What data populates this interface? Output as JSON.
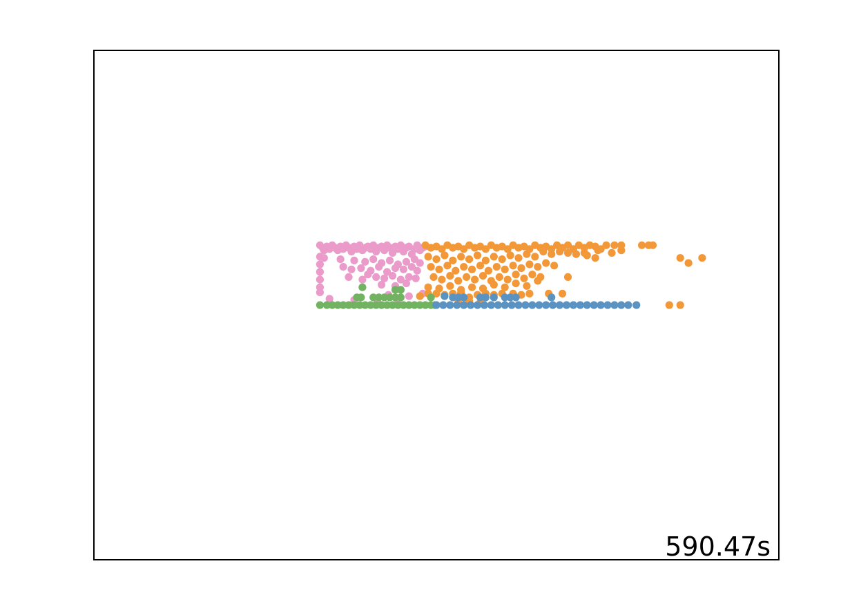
{
  "chart_data": {
    "type": "scatter",
    "title": "",
    "xlabel": "",
    "ylabel": "",
    "grid": false,
    "axes_ticks": false,
    "xlim": [
      -2.5,
      2.5
    ],
    "ylim": [
      -2.0,
      2.0
    ],
    "annotation": "590.47s",
    "annotation_position": "bottom-right",
    "series": [
      {
        "color": "#ea9bc9",
        "points": [
          [
            -0.85,
            0.47
          ],
          [
            -0.83,
            0.45
          ],
          [
            -0.82,
            0.43
          ],
          [
            -0.8,
            0.46
          ],
          [
            -0.78,
            0.44
          ],
          [
            -0.76,
            0.47
          ],
          [
            -0.74,
            0.45
          ],
          [
            -0.72,
            0.43
          ],
          [
            -0.7,
            0.46
          ],
          [
            -0.68,
            0.44
          ],
          [
            -0.66,
            0.47
          ],
          [
            -0.64,
            0.45
          ],
          [
            -0.62,
            0.42
          ],
          [
            -0.6,
            0.46
          ],
          [
            -0.58,
            0.44
          ],
          [
            -0.56,
            0.47
          ],
          [
            -0.54,
            0.43
          ],
          [
            -0.52,
            0.45
          ],
          [
            -0.5,
            0.46
          ],
          [
            -0.48,
            0.44
          ],
          [
            -0.46,
            0.47
          ],
          [
            -0.44,
            0.42
          ],
          [
            -0.42,
            0.45
          ],
          [
            -0.4,
            0.46
          ],
          [
            -0.38,
            0.43
          ],
          [
            -0.36,
            0.47
          ],
          [
            -0.34,
            0.45
          ],
          [
            -0.32,
            0.41
          ],
          [
            -0.3,
            0.46
          ],
          [
            -0.28,
            0.44
          ],
          [
            -0.26,
            0.47
          ],
          [
            -0.24,
            0.42
          ],
          [
            -0.22,
            0.45
          ],
          [
            -0.2,
            0.46
          ],
          [
            -0.18,
            0.4
          ],
          [
            -0.16,
            0.44
          ],
          [
            -0.14,
            0.47
          ],
          [
            -0.12,
            0.43
          ],
          [
            -0.1,
            0.45
          ],
          [
            -0.08,
            0.46
          ],
          [
            -0.85,
            0.38
          ],
          [
            -0.85,
            0.32
          ],
          [
            -0.85,
            0.26
          ],
          [
            -0.85,
            0.2
          ],
          [
            -0.85,
            0.14
          ],
          [
            -0.85,
            0.1
          ],
          [
            -0.82,
            0.37
          ],
          [
            -0.7,
            0.36
          ],
          [
            -0.6,
            0.35
          ],
          [
            -0.52,
            0.34
          ],
          [
            -0.46,
            0.36
          ],
          [
            -0.4,
            0.33
          ],
          [
            -0.34,
            0.35
          ],
          [
            -0.28,
            0.32
          ],
          [
            -0.22,
            0.34
          ],
          [
            -0.16,
            0.36
          ],
          [
            -0.12,
            0.33
          ],
          [
            -0.68,
            0.3
          ],
          [
            -0.62,
            0.28
          ],
          [
            -0.55,
            0.29
          ],
          [
            -0.48,
            0.27
          ],
          [
            -0.42,
            0.3
          ],
          [
            -0.36,
            0.26
          ],
          [
            -0.3,
            0.29
          ],
          [
            -0.24,
            0.28
          ],
          [
            -0.18,
            0.3
          ],
          [
            -0.14,
            0.27
          ],
          [
            -0.64,
            0.22
          ],
          [
            -0.54,
            0.2
          ],
          [
            -0.5,
            0.24
          ],
          [
            -0.44,
            0.22
          ],
          [
            -0.38,
            0.21
          ],
          [
            -0.32,
            0.23
          ],
          [
            -0.26,
            0.2
          ],
          [
            -0.2,
            0.22
          ],
          [
            -0.15,
            0.21
          ],
          [
            -0.4,
            0.16
          ],
          [
            -0.3,
            0.15
          ],
          [
            -0.22,
            0.17
          ],
          [
            -0.78,
            0.05
          ],
          [
            -0.6,
            0.04
          ],
          [
            -0.43,
            0.02
          ],
          [
            -0.35,
            0.08
          ],
          [
            -0.28,
            0.02
          ],
          [
            -0.2,
            0.07
          ],
          [
            -0.1,
            0.09
          ]
        ]
      },
      {
        "color": "#f29838",
        "points": [
          [
            -0.08,
            0.47
          ],
          [
            -0.04,
            0.45
          ],
          [
            0.0,
            0.46
          ],
          [
            0.04,
            0.44
          ],
          [
            0.08,
            0.47
          ],
          [
            0.12,
            0.45
          ],
          [
            0.16,
            0.46
          ],
          [
            0.2,
            0.44
          ],
          [
            0.24,
            0.47
          ],
          [
            0.28,
            0.45
          ],
          [
            0.32,
            0.46
          ],
          [
            0.36,
            0.44
          ],
          [
            0.4,
            0.47
          ],
          [
            0.44,
            0.45
          ],
          [
            0.48,
            0.46
          ],
          [
            0.52,
            0.44
          ],
          [
            0.56,
            0.47
          ],
          [
            0.6,
            0.45
          ],
          [
            0.64,
            0.46
          ],
          [
            0.68,
            0.44
          ],
          [
            0.72,
            0.47
          ],
          [
            0.76,
            0.45
          ],
          [
            0.8,
            0.46
          ],
          [
            0.84,
            0.44
          ],
          [
            0.88,
            0.47
          ],
          [
            0.92,
            0.45
          ],
          [
            0.96,
            0.47
          ],
          [
            1.0,
            0.44
          ],
          [
            1.04,
            0.47
          ],
          [
            1.08,
            0.45
          ],
          [
            1.12,
            0.47
          ],
          [
            1.16,
            0.46
          ],
          [
            1.2,
            0.44
          ],
          [
            1.24,
            0.47
          ],
          [
            1.3,
            0.47
          ],
          [
            1.35,
            0.47
          ],
          [
            1.5,
            0.47
          ],
          [
            1.55,
            0.47
          ],
          [
            1.58,
            0.47
          ],
          [
            1.35,
            0.43
          ],
          [
            1.28,
            0.41
          ],
          [
            1.18,
            0.43
          ],
          [
            1.08,
            0.41
          ],
          [
            -0.06,
            0.38
          ],
          [
            0.0,
            0.36
          ],
          [
            0.06,
            0.39
          ],
          [
            0.12,
            0.35
          ],
          [
            0.18,
            0.38
          ],
          [
            0.24,
            0.36
          ],
          [
            0.3,
            0.39
          ],
          [
            0.36,
            0.35
          ],
          [
            0.42,
            0.38
          ],
          [
            0.48,
            0.36
          ],
          [
            0.54,
            0.39
          ],
          [
            0.6,
            0.37
          ],
          [
            0.66,
            0.4
          ],
          [
            0.72,
            0.38
          ],
          [
            0.78,
            0.42
          ],
          [
            0.84,
            0.4
          ],
          [
            0.9,
            0.42
          ],
          [
            0.96,
            0.41
          ],
          [
            1.02,
            0.4
          ],
          [
            1.1,
            0.39
          ],
          [
            1.16,
            0.37
          ],
          [
            -0.04,
            0.3
          ],
          [
            0.02,
            0.28
          ],
          [
            0.08,
            0.31
          ],
          [
            0.14,
            0.27
          ],
          [
            0.2,
            0.3
          ],
          [
            0.26,
            0.28
          ],
          [
            0.32,
            0.31
          ],
          [
            0.38,
            0.27
          ],
          [
            0.44,
            0.3
          ],
          [
            0.5,
            0.28
          ],
          [
            0.56,
            0.31
          ],
          [
            0.62,
            0.29
          ],
          [
            0.68,
            0.32
          ],
          [
            0.74,
            0.3
          ],
          [
            0.8,
            0.33
          ],
          [
            0.86,
            0.31
          ],
          [
            -0.02,
            0.22
          ],
          [
            0.04,
            0.2
          ],
          [
            0.1,
            0.23
          ],
          [
            0.16,
            0.19
          ],
          [
            0.22,
            0.22
          ],
          [
            0.28,
            0.2
          ],
          [
            0.34,
            0.23
          ],
          [
            0.4,
            0.19
          ],
          [
            0.46,
            0.22
          ],
          [
            0.52,
            0.2
          ],
          [
            0.58,
            0.24
          ],
          [
            0.64,
            0.21
          ],
          [
            0.7,
            0.24
          ],
          [
            0.76,
            0.22
          ],
          [
            -0.06,
            0.14
          ],
          [
            0.02,
            0.13
          ],
          [
            0.1,
            0.15
          ],
          [
            0.18,
            0.12
          ],
          [
            0.26,
            0.14
          ],
          [
            0.34,
            0.13
          ],
          [
            0.42,
            0.16
          ],
          [
            0.5,
            0.14
          ],
          [
            0.58,
            0.17
          ],
          [
            0.66,
            0.15
          ],
          [
            0.74,
            0.19
          ],
          [
            0.96,
            0.22
          ],
          [
            -0.12,
            0.07
          ],
          [
            -0.06,
            0.09
          ],
          [
            0.0,
            0.09
          ],
          [
            0.06,
            0.08
          ],
          [
            0.12,
            0.09
          ],
          [
            0.18,
            0.1
          ],
          [
            0.24,
            0.06
          ],
          [
            0.3,
            0.08
          ],
          [
            0.36,
            0.09
          ],
          [
            0.42,
            0.08
          ],
          [
            0.48,
            0.09
          ],
          [
            0.56,
            0.09
          ],
          [
            0.62,
            0.08
          ],
          [
            0.68,
            0.09
          ],
          [
            0.82,
            0.09
          ],
          [
            0.92,
            0.09
          ],
          [
            0.16,
            0.04
          ],
          [
            0.24,
            0.03
          ],
          [
            0.32,
            0.02
          ],
          [
            1.78,
            0.37
          ],
          [
            1.84,
            0.33
          ],
          [
            1.94,
            0.37
          ],
          [
            1.7,
            0.0
          ],
          [
            1.78,
            0.0
          ]
        ]
      },
      {
        "color": "#71b361",
        "points": [
          [
            -0.85,
            0.0
          ],
          [
            -0.8,
            0.0
          ],
          [
            -0.76,
            0.0
          ],
          [
            -0.72,
            0.0
          ],
          [
            -0.68,
            0.0
          ],
          [
            -0.64,
            0.0
          ],
          [
            -0.6,
            0.0
          ],
          [
            -0.56,
            0.0
          ],
          [
            -0.52,
            0.0
          ],
          [
            -0.48,
            0.0
          ],
          [
            -0.44,
            0.0
          ],
          [
            -0.4,
            0.0
          ],
          [
            -0.36,
            0.0
          ],
          [
            -0.32,
            0.0
          ],
          [
            -0.28,
            0.0
          ],
          [
            -0.24,
            0.0
          ],
          [
            -0.2,
            0.0
          ],
          [
            -0.16,
            0.0
          ],
          [
            -0.12,
            0.0
          ],
          [
            -0.08,
            0.0
          ],
          [
            -0.04,
            0.0
          ],
          [
            -0.01,
            0.0
          ],
          [
            -0.58,
            0.06
          ],
          [
            -0.55,
            0.06
          ],
          [
            -0.46,
            0.06
          ],
          [
            -0.42,
            0.06
          ],
          [
            -0.38,
            0.06
          ],
          [
            -0.34,
            0.06
          ],
          [
            -0.3,
            0.06
          ],
          [
            -0.26,
            0.06
          ],
          [
            -0.04,
            0.06
          ],
          [
            -0.3,
            0.12
          ],
          [
            -0.26,
            0.12
          ],
          [
            -0.54,
            0.14
          ]
        ]
      },
      {
        "color": "#5a92c2",
        "points": [
          [
            0.0,
            0.0
          ],
          [
            0.05,
            0.0
          ],
          [
            0.1,
            0.0
          ],
          [
            0.15,
            0.0
          ],
          [
            0.2,
            0.0
          ],
          [
            0.25,
            0.0
          ],
          [
            0.3,
            0.0
          ],
          [
            0.35,
            0.0
          ],
          [
            0.4,
            0.0
          ],
          [
            0.45,
            0.0
          ],
          [
            0.5,
            0.0
          ],
          [
            0.55,
            0.0
          ],
          [
            0.6,
            0.0
          ],
          [
            0.65,
            0.0
          ],
          [
            0.7,
            0.0
          ],
          [
            0.75,
            0.0
          ],
          [
            0.8,
            0.0
          ],
          [
            0.85,
            0.0
          ],
          [
            0.9,
            0.0
          ],
          [
            0.95,
            0.0
          ],
          [
            1.0,
            0.0
          ],
          [
            1.05,
            0.0
          ],
          [
            1.1,
            0.0
          ],
          [
            1.15,
            0.0
          ],
          [
            1.2,
            0.0
          ],
          [
            1.25,
            0.0
          ],
          [
            1.3,
            0.0
          ],
          [
            1.35,
            0.0
          ],
          [
            1.4,
            0.0
          ],
          [
            1.46,
            0.0
          ],
          [
            0.06,
            0.07
          ],
          [
            0.12,
            0.06
          ],
          [
            0.16,
            0.06
          ],
          [
            0.2,
            0.06
          ],
          [
            0.32,
            0.06
          ],
          [
            0.36,
            0.06
          ],
          [
            0.42,
            0.06
          ],
          [
            0.5,
            0.06
          ],
          [
            0.54,
            0.06
          ],
          [
            0.58,
            0.06
          ],
          [
            0.84,
            0.06
          ]
        ]
      }
    ]
  }
}
